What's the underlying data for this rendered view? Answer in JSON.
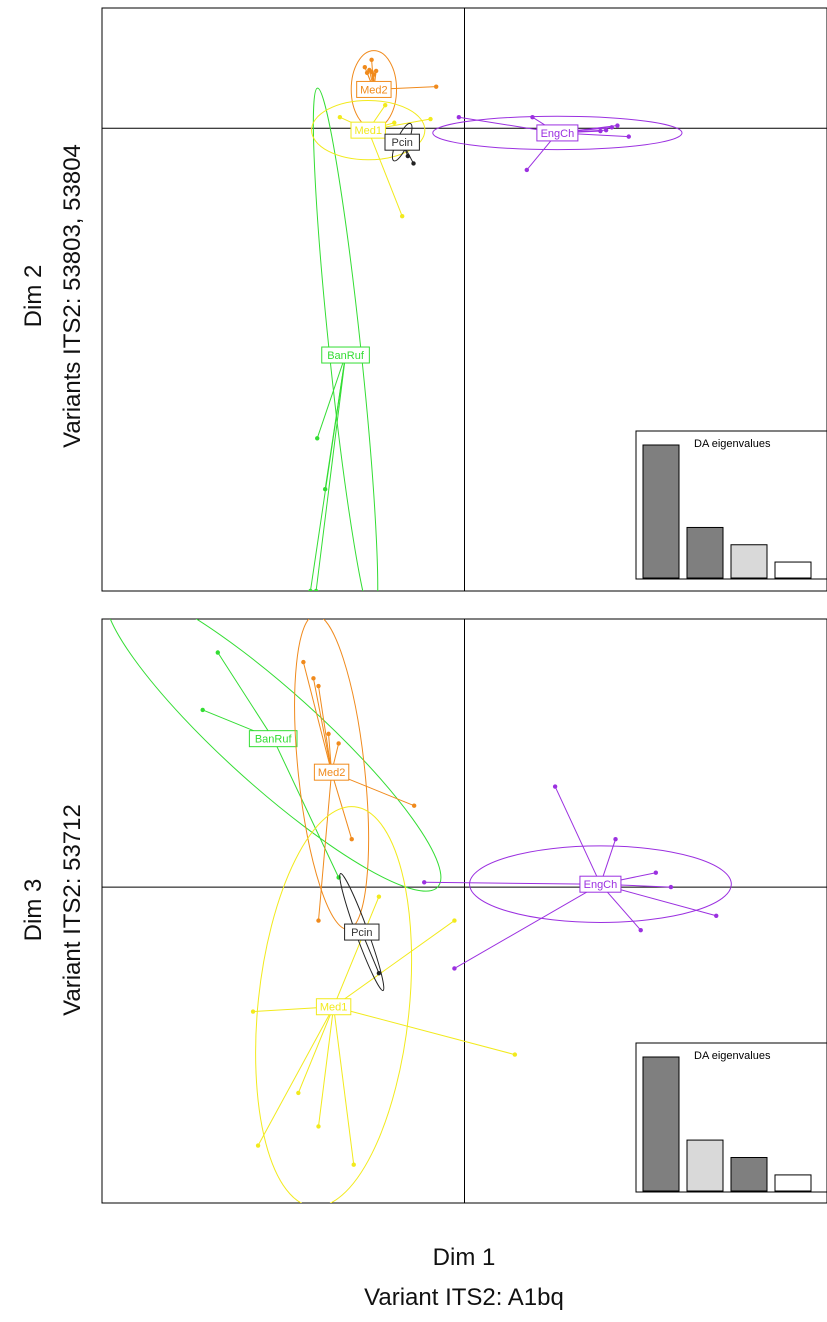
{
  "figure": {
    "xlabel_line1": "Dim 1",
    "xlabel_line2": "Variant ITS2: A1bq"
  },
  "colors": {
    "BanRuf": "#33dd33",
    "Med2": "#f08a1c",
    "Med1": "#f2ea1c",
    "EngCh": "#9b30e0",
    "Pcin": "#222222"
  },
  "chart_data": [
    {
      "type": "scatter",
      "title": "",
      "xlabel": "Dim 1 — Variant ITS2: A1bq",
      "ylabel_line1": "Dim 2",
      "ylabel_line2": "Variants ITS2: 53803, 53804",
      "grid": false,
      "legend": "none",
      "groups": [
        {
          "name": "BanRuf",
          "centroid": [
            -1.05,
            -2.45
          ],
          "ellipse": {
            "rx": 0.14,
            "ry": 2.9,
            "angle": -6
          },
          "points": [
            [
              -1.3,
              -3.35
            ],
            [
              -1.23,
              -3.9
            ],
            [
              -1.36,
              -5.0
            ],
            [
              -1.31,
              -5.0
            ]
          ]
        },
        {
          "name": "Med2",
          "centroid": [
            -0.8,
            0.42
          ],
          "ellipse": {
            "rx": 0.2,
            "ry": 0.42,
            "angle": 0
          },
          "points": [
            [
              -0.86,
              0.6
            ],
            [
              -0.84,
              0.63
            ],
            [
              -0.82,
              0.61
            ],
            [
              -0.8,
              0.58
            ],
            [
              -0.78,
              0.62
            ],
            [
              -0.88,
              0.66
            ],
            [
              -0.25,
              0.45
            ],
            [
              -0.82,
              0.74
            ]
          ]
        },
        {
          "name": "Med1",
          "centroid": [
            -0.85,
            -0.02
          ],
          "ellipse": {
            "rx": 0.5,
            "ry": 0.32,
            "angle": 0
          },
          "points": [
            [
              -0.55,
              -0.95
            ],
            [
              -0.62,
              0.06
            ],
            [
              -1.1,
              0.12
            ],
            [
              -0.7,
              0.25
            ],
            [
              -0.95,
              -0.08
            ],
            [
              -0.3,
              0.1
            ]
          ]
        },
        {
          "name": "EngCh",
          "centroid": [
            0.82,
            -0.05
          ],
          "ellipse": {
            "rx": 1.1,
            "ry": 0.18,
            "angle": 0
          },
          "points": [
            [
              1.25,
              -0.02
            ],
            [
              1.3,
              0.01
            ],
            [
              1.45,
              -0.09
            ],
            [
              1.2,
              -0.03
            ],
            [
              0.55,
              -0.45
            ],
            [
              -0.05,
              0.12
            ],
            [
              0.6,
              0.12
            ],
            [
              1.35,
              0.03
            ]
          ]
        },
        {
          "name": "Pcin",
          "centroid": [
            -0.55,
            -0.15
          ],
          "ellipse": {
            "rx": 0.05,
            "ry": 0.22,
            "angle": 24
          },
          "points": [
            [
              -0.45,
              -0.38
            ],
            [
              -0.5,
              -0.3
            ]
          ]
        }
      ],
      "xlim": [
        -3.2,
        3.2
      ],
      "ylim": [
        -5.0,
        1.3
      ],
      "inset": {
        "title": "DA eigenvalues",
        "values": [
          1.0,
          0.38,
          0.25,
          0.12
        ],
        "colors": [
          "#7f7f7f",
          "#7f7f7f",
          "#d9d9d9",
          "#ffffff"
        ]
      }
    },
    {
      "type": "scatter",
      "title": "",
      "xlabel": "Dim 1 — Variant ITS2: A1bq",
      "ylabel_line1": "Dim 3",
      "ylabel_line2": "Variant ITS2: 53712",
      "grid": false,
      "legend": "none",
      "groups": [
        {
          "name": "BanRuf",
          "centroid": [
            -1.9,
            1.55
          ],
          "ellipse": {
            "rx": 2.2,
            "ry": 0.5,
            "angle": 42
          },
          "points": [
            [
              -2.45,
              2.45
            ],
            [
              -2.6,
              1.85
            ],
            [
              -1.25,
              0.1
            ]
          ]
        },
        {
          "name": "Med2",
          "centroid": [
            -1.32,
            1.2
          ],
          "ellipse": {
            "rx": 0.33,
            "ry": 1.65,
            "angle": -6
          },
          "points": [
            [
              -1.6,
              2.35
            ],
            [
              -1.5,
              2.18
            ],
            [
              -1.45,
              2.1
            ],
            [
              -1.35,
              1.6
            ],
            [
              -1.25,
              1.5
            ],
            [
              -0.5,
              0.85
            ],
            [
              -1.45,
              -0.35
            ],
            [
              -1.12,
              0.5
            ]
          ]
        },
        {
          "name": "Med1",
          "centroid": [
            -1.3,
            -1.25
          ],
          "ellipse": {
            "rx": 0.75,
            "ry": 2.1,
            "angle": 6
          },
          "points": [
            [
              -2.1,
              -1.3
            ],
            [
              -1.65,
              -2.15
            ],
            [
              -2.05,
              -2.7
            ],
            [
              -1.45,
              -2.5
            ],
            [
              -1.1,
              -2.9
            ],
            [
              0.5,
              -1.75
            ],
            [
              -0.1,
              -0.35
            ],
            [
              -0.85,
              -0.1
            ]
          ]
        },
        {
          "name": "EngCh",
          "centroid": [
            1.35,
            0.03
          ],
          "ellipse": {
            "rx": 1.3,
            "ry": 0.4,
            "angle": 0
          },
          "points": [
            [
              0.9,
              1.05
            ],
            [
              1.5,
              0.5
            ],
            [
              2.5,
              -0.3
            ],
            [
              1.75,
              -0.45
            ],
            [
              -0.1,
              -0.85
            ],
            [
              -0.4,
              0.05
            ],
            [
              2.05,
              0.0
            ],
            [
              1.9,
              0.15
            ]
          ]
        },
        {
          "name": "Pcin",
          "centroid": [
            -1.02,
            -0.47
          ],
          "ellipse": {
            "rx": 0.06,
            "ry": 0.65,
            "angle": -20
          },
          "points": [
            [
              -0.85,
              -0.9
            ],
            [
              -1.05,
              -0.5
            ]
          ]
        }
      ],
      "xlim": [
        -3.6,
        3.6
      ],
      "ylim": [
        -3.3,
        2.8
      ],
      "inset": {
        "title": "DA eigenvalues",
        "values": [
          1.0,
          0.38,
          0.25,
          0.12
        ],
        "colors": [
          "#7f7f7f",
          "#d9d9d9",
          "#7f7f7f",
          "#ffffff"
        ]
      }
    }
  ]
}
